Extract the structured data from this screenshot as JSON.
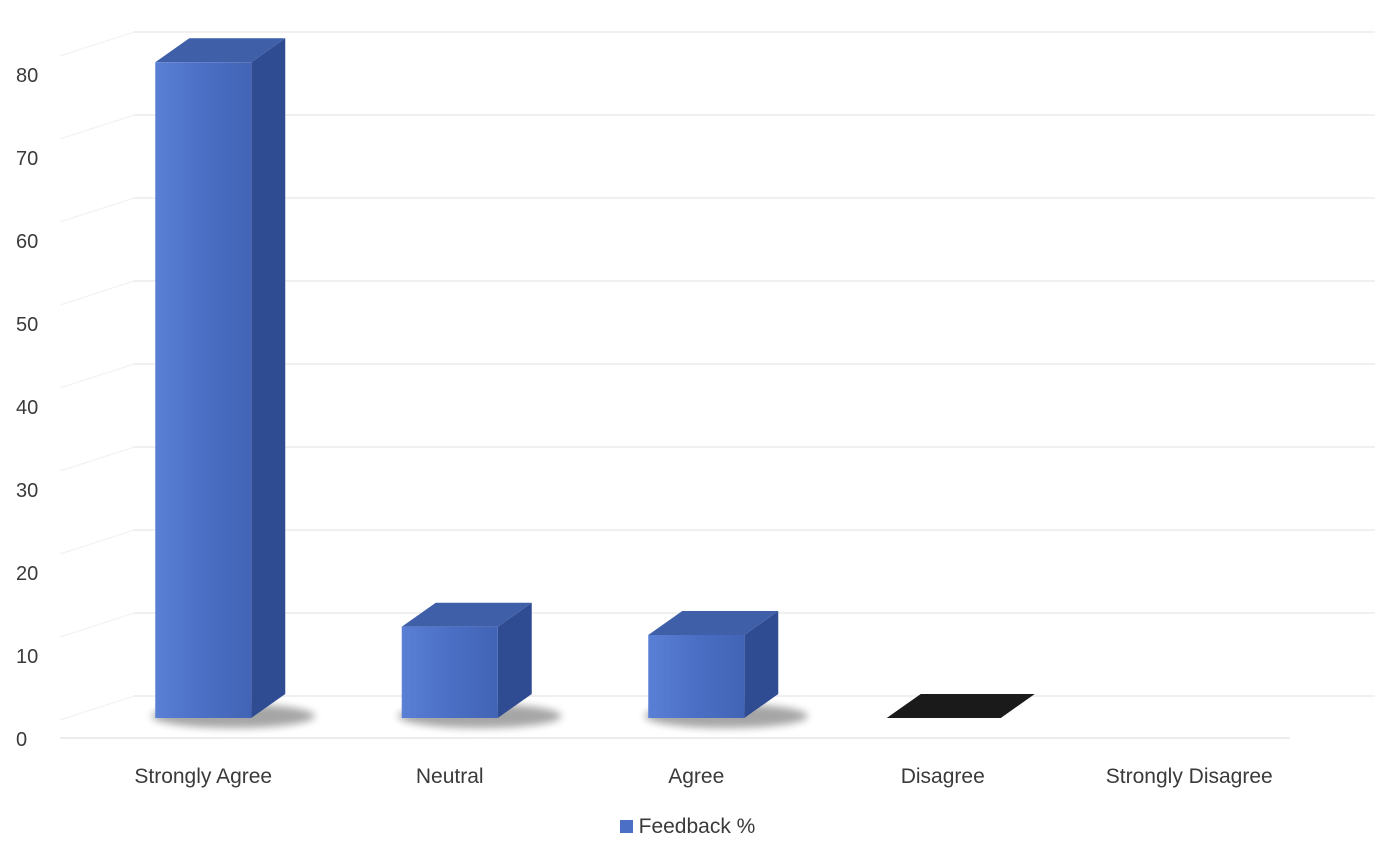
{
  "chart_data": {
    "type": "bar",
    "style": "3d-column",
    "categories": [
      "Strongly Agree",
      "Neutral",
      "Agree",
      "Disagree",
      "Strongly Disagree"
    ],
    "series": [
      {
        "name": "Feedback %",
        "values": [
          79,
          11,
          10,
          0,
          0
        ],
        "color": "#4a6fc4"
      }
    ],
    "zero_value_color": "#1a1a1a",
    "ylim": [
      0,
      80
    ],
    "yticks": [
      0,
      10,
      20,
      30,
      40,
      50,
      60,
      70,
      80
    ],
    "grid": true,
    "legend_position": "bottom"
  }
}
